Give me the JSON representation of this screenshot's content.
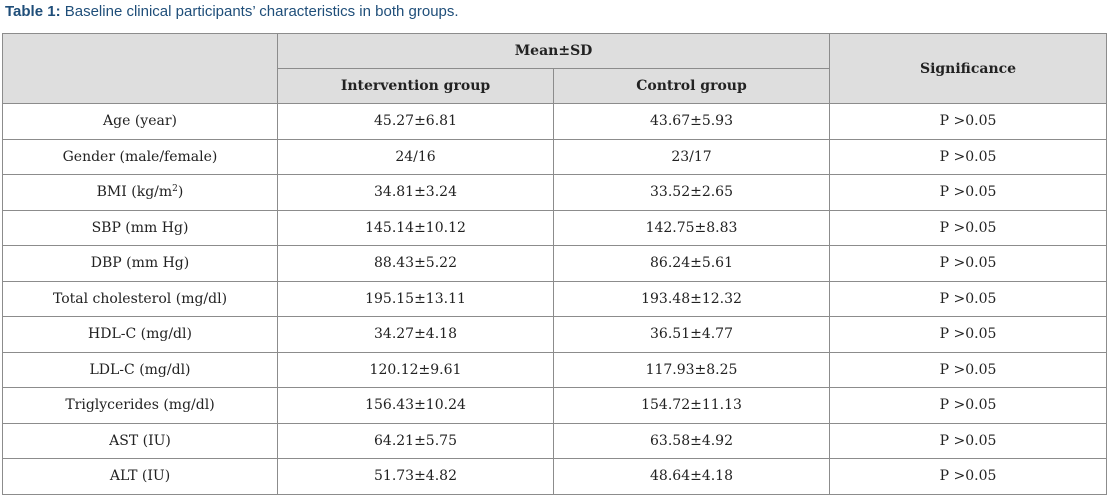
{
  "caption": {
    "label": "Table 1:",
    "text": " Baseline clinical participants’ characteristics in both groups."
  },
  "header": {
    "mean_sd": "Mean±SD",
    "intervention": "Intervention group",
    "control": "Control group",
    "significance": "Significance"
  },
  "rows": [
    {
      "label": "Age (year)",
      "intervention": "45.27±6.81",
      "control": "43.67±5.93",
      "significance": "P >0.05"
    },
    {
      "label": "Gender (male/female)",
      "intervention": "24/16",
      "control": "23/17",
      "significance": "P >0.05"
    },
    {
      "label": "BMI (kg/m",
      "label_sup": "2",
      "label_after": ")",
      "intervention": "34.81±3.24",
      "control": "33.52±2.65",
      "significance": "P >0.05"
    },
    {
      "label": "SBP (mm Hg)",
      "intervention": "145.14±10.12",
      "control": "142.75±8.83",
      "significance": "P >0.05"
    },
    {
      "label": "DBP (mm Hg)",
      "intervention": "88.43±5.22",
      "control": "86.24±5.61",
      "significance": "P >0.05"
    },
    {
      "label": "Total cholesterol (mg/dl)",
      "intervention": "195.15±13.11",
      "control": "193.48±12.32",
      "significance": "P >0.05"
    },
    {
      "label": "HDL-C (mg/dl)",
      "intervention": "34.27±4.18",
      "control": "36.51±4.77",
      "significance": "P >0.05"
    },
    {
      "label": "LDL-C (mg/dl)",
      "intervention": "120.12±9.61",
      "control": "117.93±8.25",
      "significance": "P >0.05"
    },
    {
      "label": "Triglycerides (mg/dl)",
      "intervention": "156.43±10.24",
      "control": "154.72±11.13",
      "significance": "P >0.05"
    },
    {
      "label": "AST (IU)",
      "intervention": "64.21±5.75",
      "control": "63.58±4.92",
      "significance": "P >0.05"
    },
    {
      "label": "ALT (IU)",
      "intervention": "51.73±4.82",
      "control": "48.64±4.18",
      "significance": "P >0.05"
    }
  ]
}
